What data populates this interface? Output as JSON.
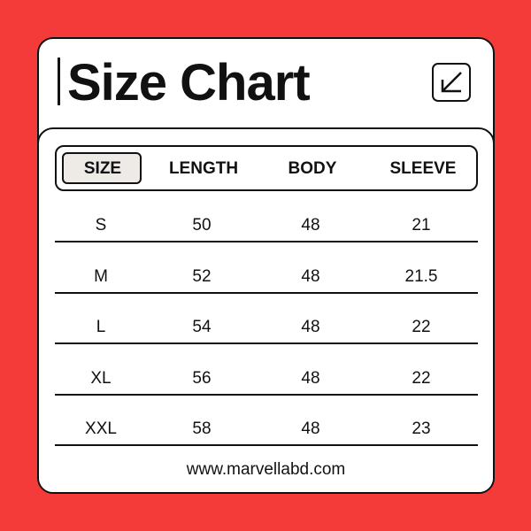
{
  "title": "Size Chart",
  "icon": "arrow-down-left-icon",
  "colors": {
    "background": "#f53a3a",
    "selected_header": "#eeebe7"
  },
  "headers": [
    "SIZE",
    "LENGTH",
    "BODY",
    "SLEEVE"
  ],
  "rows": [
    [
      "S",
      "50",
      "48",
      "21"
    ],
    [
      "M",
      "52",
      "48",
      "21.5"
    ],
    [
      "L",
      "54",
      "48",
      "22"
    ],
    [
      "XL",
      "56",
      "48",
      "22"
    ],
    [
      "XXL",
      "58",
      "48",
      "23"
    ]
  ],
  "footer": "www.marvellabd.com"
}
